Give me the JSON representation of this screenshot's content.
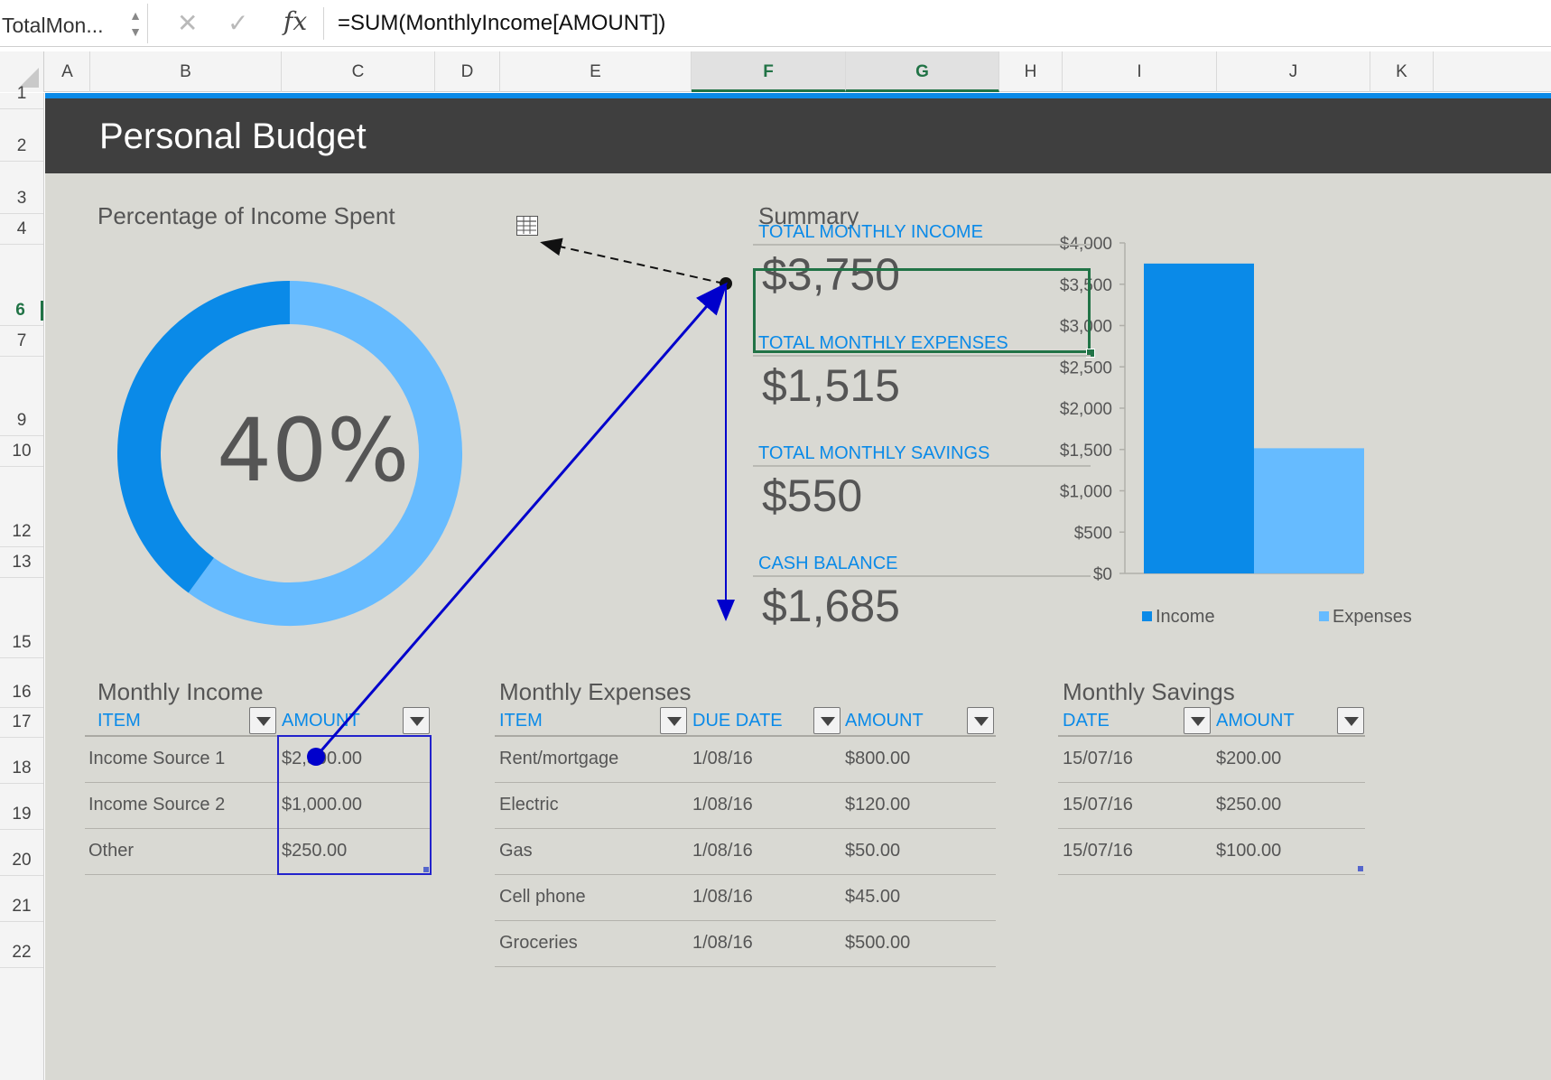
{
  "formula_bar": {
    "name_box": "TotalMon...",
    "cancel_icon": "✕",
    "enter_icon": "✓",
    "fx_label": "fx",
    "formula": "=SUM(MonthlyIncome[AMOUNT])"
  },
  "columns": [
    "A",
    "B",
    "C",
    "D",
    "E",
    "F",
    "G",
    "H",
    "I",
    "J",
    "K"
  ],
  "rows": [
    "1",
    "2",
    "3",
    "4",
    "6",
    "7",
    "9",
    "10",
    "12",
    "13",
    "15",
    "16",
    "17",
    "18",
    "19",
    "20",
    "21",
    "22"
  ],
  "selected_columns": [
    "F",
    "G"
  ],
  "selected_row": "6",
  "colors": {
    "accent_blue": "#0a8ae8",
    "light_blue": "#66bbff",
    "excel_green": "#217346",
    "banner": "#3f3f3f",
    "sheet_bg": "#d9d9d3",
    "trace_arrow": "#0000cc"
  },
  "banner": {
    "title": "Personal Budget"
  },
  "donut": {
    "title": "Percentage of Income Spent",
    "percent_label": "40%",
    "percent": 40
  },
  "summary": {
    "title": "Summary",
    "items": [
      {
        "label": "TOTAL MONTHLY INCOME",
        "value": "$3,750"
      },
      {
        "label": "TOTAL MONTHLY EXPENSES",
        "value": "$1,515"
      },
      {
        "label": "TOTAL MONTHLY SAVINGS",
        "value": "$550"
      },
      {
        "label": "CASH BALANCE",
        "value": "$1,685"
      }
    ]
  },
  "chart_data": {
    "type": "bar",
    "categories": [
      "Income",
      "Expenses"
    ],
    "values": [
      3750,
      1515
    ],
    "series_colors": [
      "#0a8ae8",
      "#66bbff"
    ],
    "ylim": [
      0,
      4000
    ],
    "yticks": [
      "$0",
      "$500",
      "$1,000",
      "$1,500",
      "$2,000",
      "$2,500",
      "$3,000",
      "$3,500",
      "$4,000"
    ],
    "ytick_values": [
      0,
      500,
      1000,
      1500,
      2000,
      2500,
      3000,
      3500,
      4000
    ],
    "legend": [
      "Income",
      "Expenses"
    ],
    "legend_position": "bottom",
    "grid": false
  },
  "monthly_income": {
    "title": "Monthly Income",
    "headers": [
      "ITEM",
      "AMOUNT"
    ],
    "rows": [
      [
        "Income Source 1",
        "$2,500.00"
      ],
      [
        "Income Source 2",
        "$1,000.00"
      ],
      [
        "Other",
        "$250.00"
      ]
    ]
  },
  "monthly_expenses": {
    "title": "Monthly Expenses",
    "headers": [
      "ITEM",
      "DUE DATE",
      "AMOUNT"
    ],
    "rows": [
      [
        "Rent/mortgage",
        "1/08/16",
        "$800.00"
      ],
      [
        "Electric",
        "1/08/16",
        "$120.00"
      ],
      [
        "Gas",
        "1/08/16",
        "$50.00"
      ],
      [
        "Cell phone",
        "1/08/16",
        "$45.00"
      ],
      [
        "Groceries",
        "1/08/16",
        "$500.00"
      ]
    ]
  },
  "monthly_savings": {
    "title": "Monthly Savings",
    "headers": [
      "DATE",
      "AMOUNT"
    ],
    "rows": [
      [
        "15/07/16",
        "$200.00"
      ],
      [
        "15/07/16",
        "$250.00"
      ],
      [
        "15/07/16",
        "$100.00"
      ]
    ]
  }
}
